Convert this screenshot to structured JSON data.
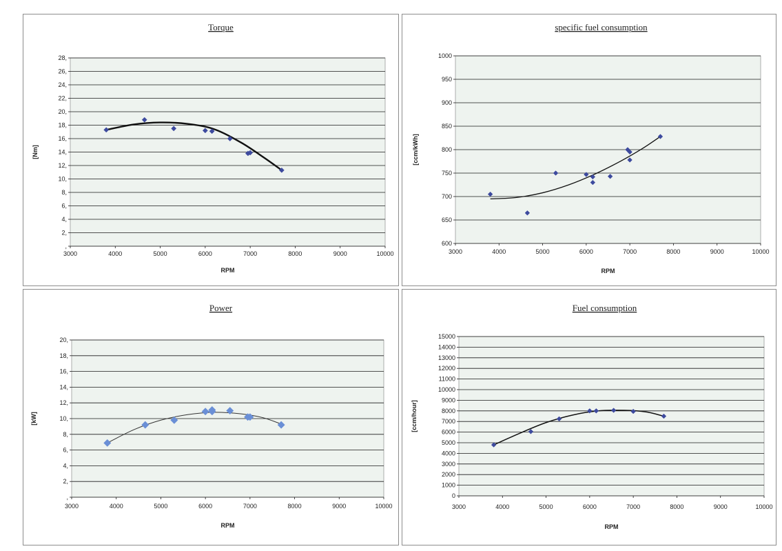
{
  "chart_data": [
    {
      "type": "scatter",
      "title": "Torque",
      "xlabel": "RPM",
      "ylabel": "[Nm]",
      "xlim": [
        3000,
        10000
      ],
      "ylim": [
        0,
        28
      ],
      "xticks": [
        3000,
        4000,
        5000,
        6000,
        7000,
        8000,
        9000,
        10000
      ],
      "yticks": [
        28,
        26,
        24,
        22,
        20,
        18,
        16,
        14,
        12,
        10,
        8,
        6,
        4,
        2,
        0
      ],
      "ytick_labels": [
        "28,",
        "26,",
        "24,",
        "22,",
        "20,",
        "18,",
        "16,",
        "14,",
        "12,",
        "10,",
        "8,",
        "6,",
        "4,",
        "2,",
        ","
      ],
      "grid": true,
      "colors": {
        "marker": "#3d4a9e",
        "trend": "#111111",
        "plot_bg": "#eef3ef"
      },
      "series": [
        {
          "x": [
            3800,
            4650,
            5300,
            6000,
            6150,
            6550,
            6950,
            7000,
            7700
          ],
          "y": [
            17.3,
            18.8,
            17.5,
            17.2,
            17.1,
            16.0,
            13.8,
            13.9,
            11.3
          ]
        }
      ],
      "trendline": {
        "x": [
          3800,
          4400,
          5000,
          5600,
          6200,
          6800,
          7300,
          7700
        ],
        "y": [
          17.3,
          18.1,
          18.4,
          18.2,
          17.4,
          15.4,
          13.2,
          11.3
        ]
      }
    },
    {
      "type": "scatter",
      "title": "specific fuel consumption",
      "xlabel": "RPM",
      "ylabel": "[ccm/kWh]",
      "xlim": [
        3000,
        10000
      ],
      "ylim": [
        600,
        1000
      ],
      "xticks": [
        3000,
        4000,
        5000,
        6000,
        7000,
        8000,
        9000,
        10000
      ],
      "yticks": [
        1000,
        950,
        900,
        850,
        800,
        750,
        700,
        650,
        600
      ],
      "ytick_labels": [
        "1000",
        "950",
        "900",
        "850",
        "800",
        "750",
        "700",
        "650",
        "600"
      ],
      "grid": true,
      "colors": {
        "marker": "#3d4a9e",
        "trend": "#111111",
        "plot_bg": "#eef3ef"
      },
      "series": [
        {
          "x": [
            3800,
            4650,
            5300,
            6000,
            6150,
            6150,
            6550,
            6950,
            7000,
            7000,
            7700
          ],
          "y": [
            705,
            665,
            750,
            747,
            742,
            730,
            743,
            800,
            795,
            778,
            828
          ]
        }
      ],
      "trendline": {
        "x": [
          3800,
          4400,
          5000,
          5600,
          6200,
          6800,
          7300,
          7700
        ],
        "y": [
          695,
          698,
          708,
          725,
          748,
          776,
          803,
          828
        ]
      }
    },
    {
      "type": "scatter",
      "title": "Power",
      "xlabel": "RPM",
      "ylabel": "[kW]",
      "xlim": [
        3000,
        10000
      ],
      "ylim": [
        0,
        20
      ],
      "xticks": [
        3000,
        4000,
        5000,
        6000,
        7000,
        8000,
        9000,
        10000
      ],
      "yticks": [
        20,
        18,
        16,
        14,
        12,
        10,
        8,
        6,
        4,
        2,
        0
      ],
      "ytick_labels": [
        "20,",
        "18,",
        "16,",
        "14,",
        "12,",
        "10,",
        "8,",
        "6,",
        "4,",
        "2,",
        ","
      ],
      "grid": true,
      "colors": {
        "marker": "#6a8fd6",
        "trend": "#333333",
        "plot_bg": "#eef3ef"
      },
      "series": [
        {
          "x": [
            3800,
            4650,
            5300,
            6000,
            6150,
            6150,
            6550,
            6950,
            7000,
            7700
          ],
          "y": [
            6.9,
            9.2,
            9.8,
            10.9,
            11.1,
            10.9,
            11.0,
            10.2,
            10.2,
            9.2
          ]
        }
      ],
      "trendline": {
        "x": [
          3800,
          4400,
          5000,
          5600,
          6200,
          6800,
          7300,
          7700
        ],
        "y": [
          6.9,
          8.6,
          9.8,
          10.5,
          10.8,
          10.6,
          10.1,
          9.3
        ]
      }
    },
    {
      "type": "line",
      "title": "Fuel consumption",
      "xlabel": "RPM",
      "ylabel": "[ccm/hour]",
      "xlim": [
        3000,
        10000
      ],
      "ylim": [
        0,
        15000
      ],
      "xticks": [
        3000,
        4000,
        5000,
        6000,
        7000,
        8000,
        9000,
        10000
      ],
      "yticks": [
        15000,
        14000,
        13000,
        12000,
        11000,
        10000,
        9000,
        8000,
        7000,
        6000,
        5000,
        4000,
        3000,
        2000,
        1000,
        0
      ],
      "ytick_labels": [
        "15000",
        "14000",
        "13000",
        "12000",
        "11000",
        "10000",
        "9000",
        "8000",
        "7000",
        "6000",
        "5000",
        "4000",
        "3000",
        "2000",
        "1000",
        "0"
      ],
      "grid": true,
      "colors": {
        "marker": "#3d4a9e",
        "trend": "#111111",
        "plot_bg": "#eef3ef"
      },
      "series": [
        {
          "x": [
            3800,
            4650,
            5300,
            6000,
            6150,
            6550,
            7000,
            7700
          ],
          "y": [
            4800,
            6050,
            7250,
            8000,
            8000,
            8050,
            7950,
            7500
          ]
        }
      ],
      "trendline": {
        "x": [
          3800,
          4400,
          5000,
          5600,
          6200,
          6800,
          7300,
          7700
        ],
        "y": [
          4800,
          5900,
          6900,
          7600,
          8000,
          8050,
          7900,
          7500
        ]
      }
    }
  ]
}
